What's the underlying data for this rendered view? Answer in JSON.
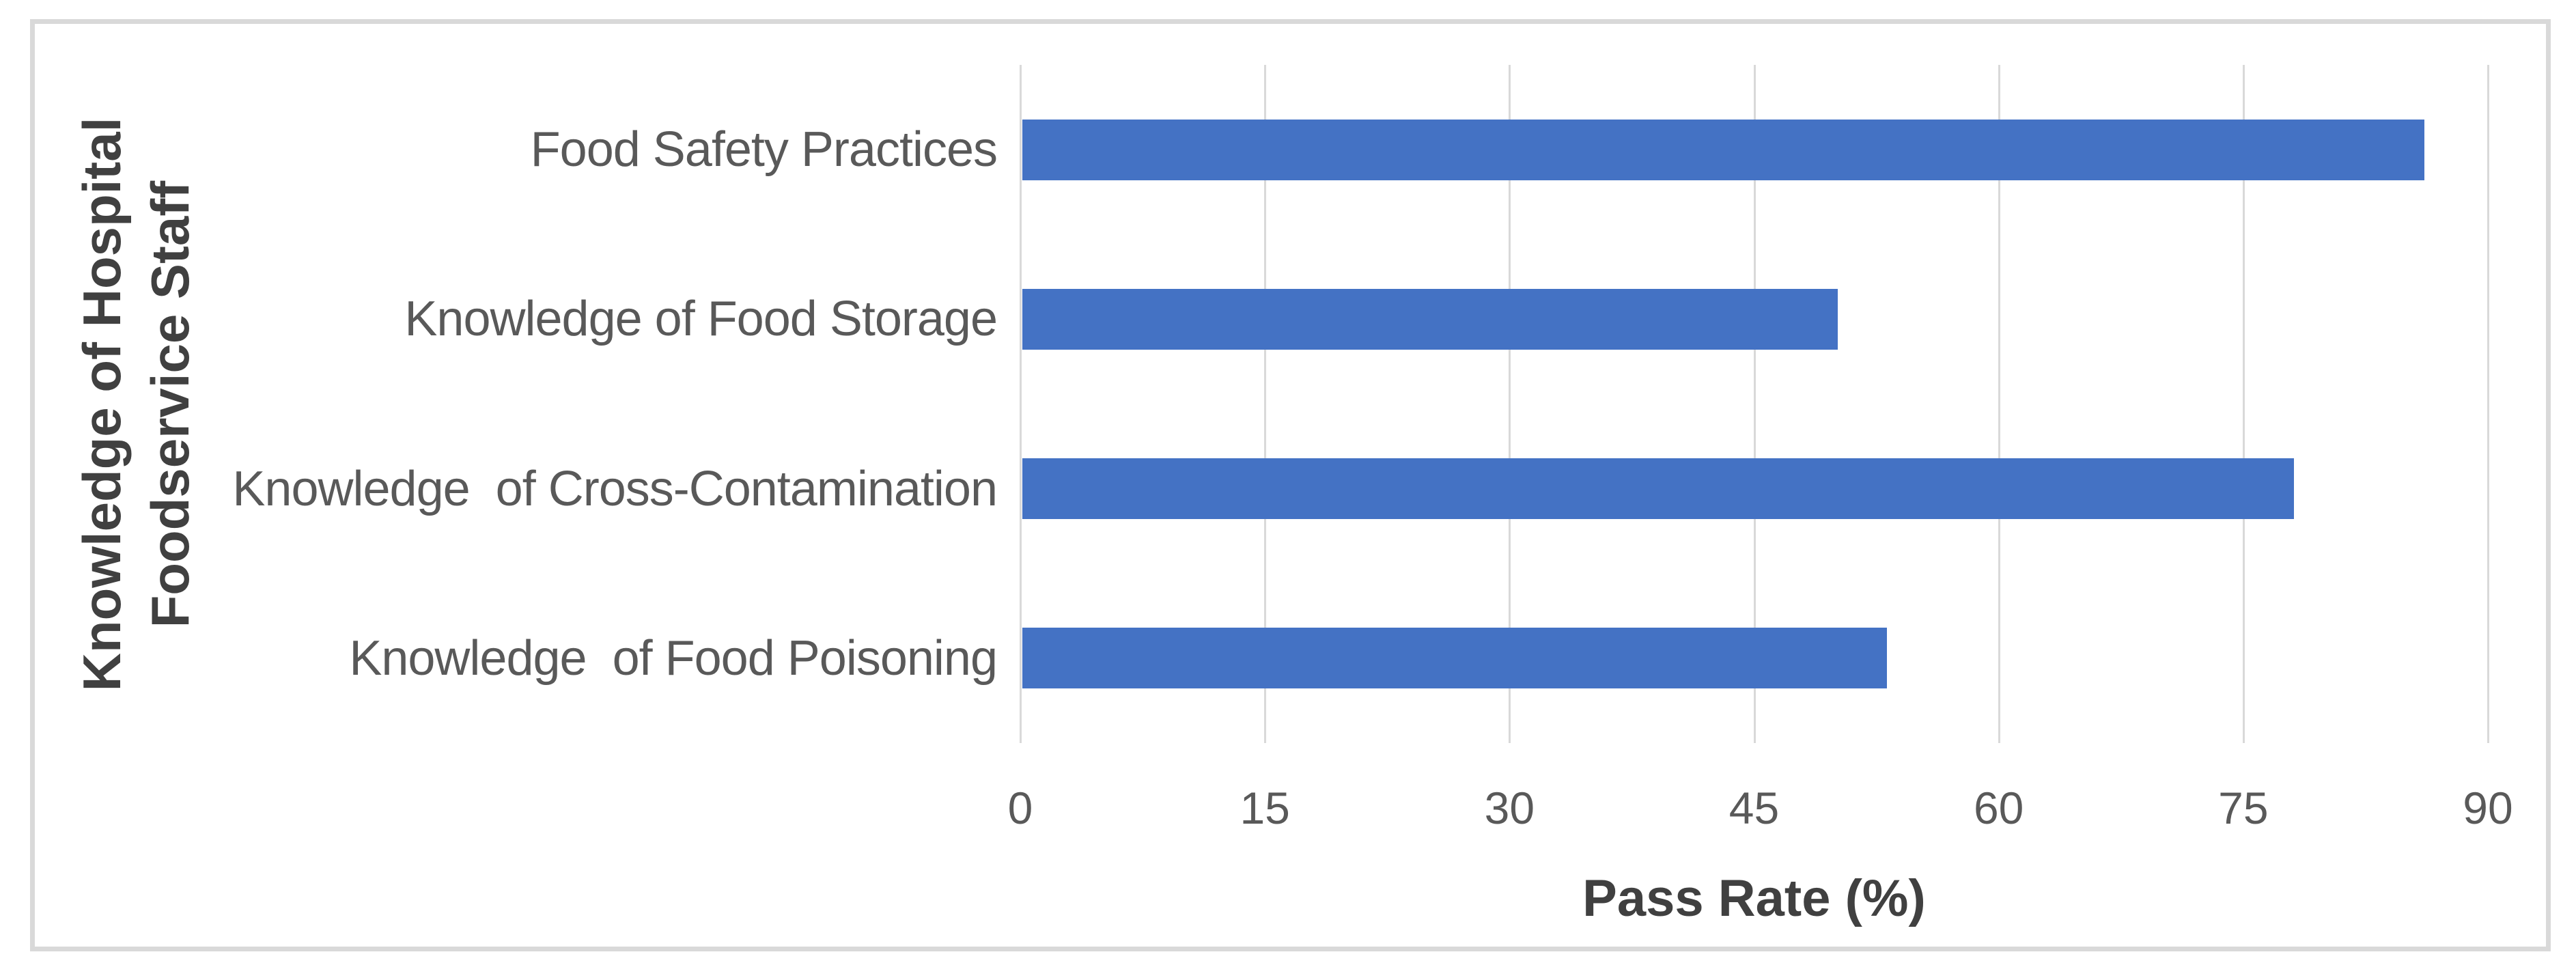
{
  "chart_data": {
    "type": "bar",
    "orientation": "horizontal",
    "categories": [
      "Food Safety Practices",
      "Knowledge of Food Storage",
      "Knowledge  of Cross-Contamination",
      "Knowledge  of Food Poisoning"
    ],
    "values": [
      86,
      50,
      78,
      53
    ],
    "title": "",
    "xlabel": "Pass Rate (%)",
    "ylabel_lines": [
      "Knowledge of Hospital",
      "Foodservice Staff"
    ],
    "xlim": [
      0,
      90
    ],
    "xticks": [
      0,
      15,
      30,
      45,
      60,
      75,
      90
    ],
    "grid": "vertical",
    "legend": "none",
    "colors": {
      "bar": "#4472C4",
      "gridline": "#D9D9D9",
      "frame_border": "#D9D9D9",
      "tick_label": "#595959",
      "category_label": "#595959",
      "axis_title": "#404040"
    }
  }
}
